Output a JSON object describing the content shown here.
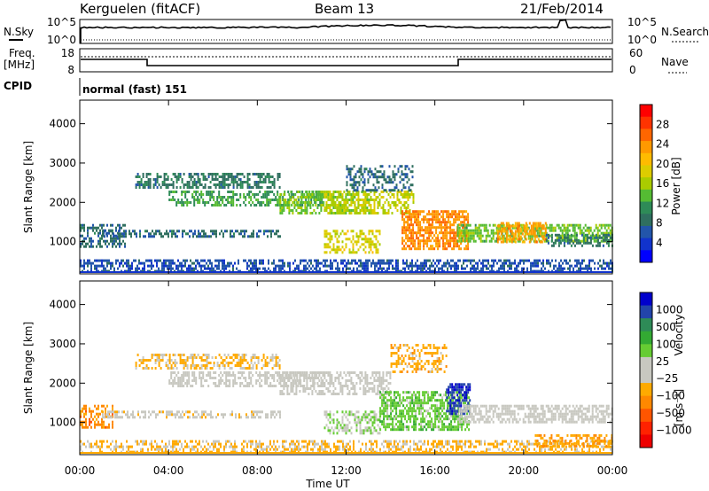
{
  "header": {
    "station": "Kerguelen (fitACF)",
    "beam": "Beam 13",
    "date": "21/Feb/2014"
  },
  "panels": {
    "nsky_label": "N.Sky",
    "nsearch_label": "N.Search",
    "freq_label": "Freq.",
    "freq_unit": "[MHz]",
    "nave_label": "Nave",
    "cpid_label": "CPID",
    "cpid_value": "normal (fast) 151",
    "noise_ticks_left": [
      "10^5",
      "10^0"
    ],
    "noise_ticks_right": [
      "10^5",
      "10^0"
    ],
    "freq_ticks": [
      "18",
      "8"
    ],
    "nave_ticks": [
      "60",
      "0"
    ]
  },
  "colorbars": {
    "power": {
      "label": "Power [dB]",
      "ticks": [
        "28",
        "24",
        "20",
        "16",
        "12",
        "8",
        "4"
      ],
      "colors": [
        "#ff0000",
        "#ff3300",
        "#ff6600",
        "#ff9900",
        "#ffbb00",
        "#ddcc00",
        "#aacc00",
        "#55bb33",
        "#2e8b57",
        "#2f6f5f",
        "#2255aa",
        "#1133cc",
        "#0000ff"
      ]
    },
    "velocity": {
      "label": "Velocity",
      "unit": "[m s⁻¹]",
      "ticks": [
        "1000",
        "500",
        "100",
        "25",
        "−25",
        "−100",
        "−500",
        "−1000"
      ],
      "colors": [
        "#0000cc",
        "#2244aa",
        "#2e8b57",
        "#33aa33",
        "#66cc33",
        "#c8c8c0",
        "#c8c8c0",
        "#ffaa00",
        "#ff8800",
        "#ff5500",
        "#ff2200",
        "#ee0000"
      ]
    }
  },
  "chart_data": [
    {
      "type": "heatmap",
      "title": "Power",
      "xlabel": "Time UT",
      "ylabel": "Slant Range [km]",
      "x_ticks": [
        "00:00",
        "04:00",
        "08:00",
        "12:00",
        "16:00",
        "20:00",
        "00:00"
      ],
      "xlim_hours": [
        0,
        24
      ],
      "y_ticks": [
        4000,
        3000,
        2000,
        1000
      ],
      "ylim": [
        180,
        4600
      ],
      "colorbar": {
        "label": "Power [dB]",
        "range": [
          0,
          32
        ],
        "ticks": [
          4,
          8,
          12,
          16,
          20,
          24,
          28
        ]
      },
      "regions": [
        {
          "t0": 0.0,
          "t1": 24.0,
          "r0": 250,
          "r1": 550,
          "value": 6,
          "density": 0.55
        },
        {
          "t0": 0.0,
          "t1": 2.0,
          "r0": 900,
          "r1": 1450,
          "value": 8,
          "density": 0.5
        },
        {
          "t0": 1.0,
          "t1": 9.0,
          "r0": 1100,
          "r1": 1300,
          "value": 8,
          "density": 0.55
        },
        {
          "t0": 2.5,
          "t1": 9.0,
          "r0": 2350,
          "r1": 2750,
          "value": 9,
          "density": 0.55
        },
        {
          "t0": 4.0,
          "t1": 11.0,
          "r0": 1900,
          "r1": 2300,
          "value": 12,
          "density": 0.5
        },
        {
          "t0": 9.0,
          "t1": 13.0,
          "r0": 1700,
          "r1": 2300,
          "value": 15,
          "density": 0.5
        },
        {
          "t0": 11.0,
          "t1": 13.5,
          "r0": 700,
          "r1": 1300,
          "value": 18,
          "density": 0.5
        },
        {
          "t0": 11.0,
          "t1": 15.0,
          "r0": 1700,
          "r1": 2300,
          "value": 17,
          "density": 0.5
        },
        {
          "t0": 12.0,
          "t1": 15.0,
          "r0": 2300,
          "r1": 2950,
          "value": 8,
          "density": 0.4
        },
        {
          "t0": 14.5,
          "t1": 17.5,
          "r0": 800,
          "r1": 1800,
          "value": 24,
          "density": 0.7
        },
        {
          "t0": 17.0,
          "t1": 24.0,
          "r0": 1000,
          "r1": 1450,
          "value": 14,
          "density": 0.6
        },
        {
          "t0": 18.8,
          "t1": 21.0,
          "r0": 1000,
          "r1": 1500,
          "value": 23,
          "density": 0.6
        },
        {
          "t0": 21.0,
          "t1": 24.0,
          "r0": 900,
          "r1": 1200,
          "value": 9,
          "density": 0.5
        }
      ]
    },
    {
      "type": "heatmap",
      "title": "Velocity",
      "xlabel": "Time UT",
      "ylabel": "Slant Range [km]",
      "x_ticks": [
        "00:00",
        "04:00",
        "08:00",
        "12:00",
        "16:00",
        "20:00",
        "00:00"
      ],
      "xlim_hours": [
        0,
        24
      ],
      "y_ticks": [
        4000,
        3000,
        2000,
        1000
      ],
      "ylim": [
        180,
        4600
      ],
      "colorbar": {
        "label": "Velocity [m s⁻¹]",
        "range": [
          -1000,
          1000
        ],
        "ticks": [
          1000,
          500,
          100,
          25,
          -25,
          -100,
          -500,
          -1000
        ]
      },
      "regions": [
        {
          "t0": 0.0,
          "t1": 24.0,
          "r0": 250,
          "r1": 550,
          "value": -200,
          "density": 0.5
        },
        {
          "t0": 0.0,
          "t1": 1.5,
          "r0": 900,
          "r1": 1450,
          "value": -400,
          "density": 0.5
        },
        {
          "t0": 1.0,
          "t1": 9.0,
          "r0": 1100,
          "r1": 1300,
          "value": -100,
          "density": 0.45
        },
        {
          "t0": 2.5,
          "t1": 9.0,
          "r0": 2350,
          "r1": 2750,
          "value": -200,
          "density": 0.5
        },
        {
          "t0": 4.0,
          "t1": 11.0,
          "r0": 1900,
          "r1": 2300,
          "value": 0,
          "density": 0.5
        },
        {
          "t0": 9.0,
          "t1": 14.0,
          "r0": 1700,
          "r1": 2300,
          "value": 0,
          "density": 0.55
        },
        {
          "t0": 11.0,
          "t1": 13.5,
          "r0": 700,
          "r1": 1300,
          "value": 150,
          "density": 0.45
        },
        {
          "t0": 13.5,
          "t1": 17.5,
          "r0": 800,
          "r1": 1800,
          "value": 250,
          "density": 0.65
        },
        {
          "t0": 16.5,
          "t1": 17.6,
          "r0": 1200,
          "r1": 2000,
          "value": 800,
          "density": 0.55
        },
        {
          "t0": 17.0,
          "t1": 24.0,
          "r0": 1000,
          "r1": 1450,
          "value": 0,
          "density": 0.6
        },
        {
          "t0": 14.0,
          "t1": 16.5,
          "r0": 2300,
          "r1": 3000,
          "value": -250,
          "density": 0.4
        },
        {
          "t0": 20.5,
          "t1": 24.0,
          "r0": 400,
          "r1": 700,
          "value": -300,
          "density": 0.5
        }
      ]
    }
  ]
}
